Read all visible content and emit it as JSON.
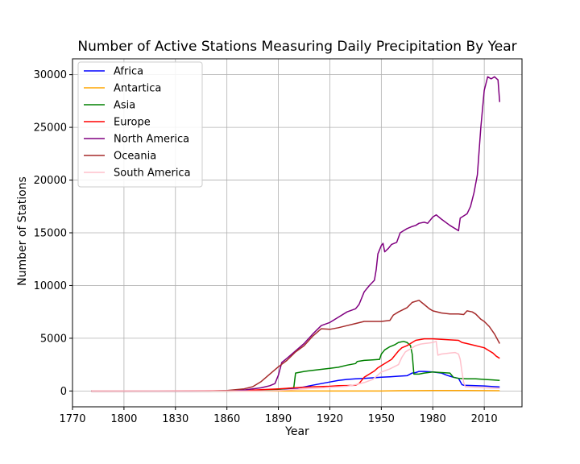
{
  "chart_data": {
    "type": "line",
    "title": "Number of Active Stations Measuring Daily Precipitation By Year",
    "xlabel": "Year",
    "ylabel": "Number of Stations",
    "xlim": [
      1770,
      2032
    ],
    "ylim": [
      -1500,
      31500
    ],
    "xticks": [
      1770,
      1800,
      1830,
      1860,
      1890,
      1920,
      1950,
      1980,
      2010
    ],
    "yticks": [
      0,
      5000,
      10000,
      15000,
      20000,
      25000,
      30000
    ],
    "grid": true,
    "legend_position": "top-left",
    "series": [
      {
        "name": "Africa",
        "color": "#0000ff",
        "points": [
          [
            1781,
            0
          ],
          [
            1850,
            0
          ],
          [
            1870,
            10
          ],
          [
            1880,
            60
          ],
          [
            1890,
            150
          ],
          [
            1900,
            250
          ],
          [
            1905,
            380
          ],
          [
            1910,
            550
          ],
          [
            1915,
            700
          ],
          [
            1920,
            850
          ],
          [
            1925,
            1000
          ],
          [
            1930,
            1100
          ],
          [
            1935,
            1150
          ],
          [
            1940,
            1200
          ],
          [
            1945,
            1250
          ],
          [
            1950,
            1300
          ],
          [
            1955,
            1350
          ],
          [
            1960,
            1400
          ],
          [
            1965,
            1450
          ],
          [
            1968,
            1700
          ],
          [
            1970,
            1750
          ],
          [
            1972,
            1850
          ],
          [
            1975,
            1850
          ],
          [
            1980,
            1800
          ],
          [
            1985,
            1700
          ],
          [
            1988,
            1500
          ],
          [
            1990,
            1400
          ],
          [
            1992,
            1300
          ],
          [
            1995,
            1200
          ],
          [
            1997,
            600
          ],
          [
            1998,
            550
          ],
          [
            2005,
            500
          ],
          [
            2010,
            480
          ],
          [
            2015,
            420
          ],
          [
            2019,
            380
          ]
        ]
      },
      {
        "name": "Antartica",
        "color": "#ffa500",
        "points": [
          [
            1781,
            0
          ],
          [
            1950,
            0
          ],
          [
            1957,
            20
          ],
          [
            1960,
            30
          ],
          [
            1980,
            40
          ],
          [
            2000,
            40
          ],
          [
            2019,
            30
          ]
        ]
      },
      {
        "name": "Asia",
        "color": "#008000",
        "points": [
          [
            1781,
            0
          ],
          [
            1860,
            0
          ],
          [
            1880,
            50
          ],
          [
            1890,
            150
          ],
          [
            1899,
            300
          ],
          [
            1900,
            1700
          ],
          [
            1905,
            1850
          ],
          [
            1910,
            1950
          ],
          [
            1915,
            2050
          ],
          [
            1920,
            2150
          ],
          [
            1925,
            2250
          ],
          [
            1930,
            2450
          ],
          [
            1935,
            2600
          ],
          [
            1936,
            2800
          ],
          [
            1940,
            2900
          ],
          [
            1945,
            2950
          ],
          [
            1949,
            3000
          ],
          [
            1950,
            3500
          ],
          [
            1952,
            3900
          ],
          [
            1955,
            4200
          ],
          [
            1958,
            4400
          ],
          [
            1960,
            4600
          ],
          [
            1963,
            4700
          ],
          [
            1965,
            4600
          ],
          [
            1967,
            4300
          ],
          [
            1968,
            3500
          ],
          [
            1969,
            1600
          ],
          [
            1972,
            1600
          ],
          [
            1975,
            1700
          ],
          [
            1980,
            1800
          ],
          [
            1985,
            1750
          ],
          [
            1990,
            1700
          ],
          [
            1992,
            1300
          ],
          [
            1995,
            1200
          ],
          [
            2000,
            1150
          ],
          [
            2005,
            1150
          ],
          [
            2010,
            1100
          ],
          [
            2015,
            1050
          ],
          [
            2019,
            1000
          ]
        ]
      },
      {
        "name": "Europe",
        "color": "#ff0000",
        "points": [
          [
            1781,
            0
          ],
          [
            1860,
            30
          ],
          [
            1875,
            80
          ],
          [
            1890,
            200
          ],
          [
            1900,
            300
          ],
          [
            1910,
            400
          ],
          [
            1920,
            450
          ],
          [
            1925,
            500
          ],
          [
            1930,
            520
          ],
          [
            1935,
            550
          ],
          [
            1937,
            700
          ],
          [
            1940,
            1300
          ],
          [
            1943,
            1600
          ],
          [
            1946,
            1900
          ],
          [
            1948,
            2200
          ],
          [
            1950,
            2400
          ],
          [
            1953,
            2700
          ],
          [
            1956,
            3000
          ],
          [
            1958,
            3400
          ],
          [
            1960,
            3800
          ],
          [
            1962,
            4100
          ],
          [
            1965,
            4300
          ],
          [
            1968,
            4600
          ],
          [
            1970,
            4800
          ],
          [
            1975,
            4950
          ],
          [
            1980,
            4950
          ],
          [
            1985,
            4900
          ],
          [
            1990,
            4850
          ],
          [
            1995,
            4800
          ],
          [
            1997,
            4600
          ],
          [
            2000,
            4500
          ],
          [
            2005,
            4300
          ],
          [
            2010,
            4100
          ],
          [
            2013,
            3800
          ],
          [
            2015,
            3600
          ],
          [
            2017,
            3300
          ],
          [
            2019,
            3100
          ]
        ]
      },
      {
        "name": "North America",
        "color": "#800080",
        "points": [
          [
            1781,
            0
          ],
          [
            1840,
            0
          ],
          [
            1860,
            20
          ],
          [
            1870,
            100
          ],
          [
            1880,
            300
          ],
          [
            1885,
            500
          ],
          [
            1888,
            700
          ],
          [
            1890,
            1500
          ],
          [
            1892,
            2700
          ],
          [
            1895,
            3100
          ],
          [
            1900,
            3800
          ],
          [
            1905,
            4500
          ],
          [
            1910,
            5400
          ],
          [
            1915,
            6200
          ],
          [
            1920,
            6500
          ],
          [
            1925,
            7000
          ],
          [
            1930,
            7500
          ],
          [
            1935,
            7800
          ],
          [
            1937,
            8200
          ],
          [
            1940,
            9400
          ],
          [
            1943,
            10000
          ],
          [
            1946,
            10500
          ],
          [
            1947,
            11500
          ],
          [
            1948,
            13000
          ],
          [
            1950,
            13800
          ],
          [
            1951,
            14000
          ],
          [
            1952,
            13200
          ],
          [
            1954,
            13500
          ],
          [
            1956,
            13900
          ],
          [
            1959,
            14100
          ],
          [
            1961,
            15000
          ],
          [
            1963,
            15200
          ],
          [
            1965,
            15400
          ],
          [
            1968,
            15600
          ],
          [
            1970,
            15700
          ],
          [
            1972,
            15900
          ],
          [
            1975,
            16000
          ],
          [
            1977,
            15900
          ],
          [
            1980,
            16500
          ],
          [
            1982,
            16700
          ],
          [
            1985,
            16300
          ],
          [
            1990,
            15700
          ],
          [
            1995,
            15200
          ],
          [
            1996,
            16400
          ],
          [
            2000,
            16800
          ],
          [
            2002,
            17500
          ],
          [
            2004,
            18800
          ],
          [
            2006,
            20500
          ],
          [
            2008,
            25000
          ],
          [
            2010,
            28500
          ],
          [
            2012,
            29800
          ],
          [
            2014,
            29600
          ],
          [
            2016,
            29800
          ],
          [
            2018,
            29500
          ],
          [
            2019,
            27400
          ]
        ]
      },
      {
        "name": "Oceania",
        "color": "#a52a2a",
        "points": [
          [
            1781,
            0
          ],
          [
            1850,
            0
          ],
          [
            1860,
            50
          ],
          [
            1870,
            200
          ],
          [
            1875,
            400
          ],
          [
            1880,
            900
          ],
          [
            1885,
            1600
          ],
          [
            1890,
            2300
          ],
          [
            1895,
            2900
          ],
          [
            1900,
            3700
          ],
          [
            1905,
            4300
          ],
          [
            1910,
            5200
          ],
          [
            1915,
            5900
          ],
          [
            1920,
            5850
          ],
          [
            1925,
            6000
          ],
          [
            1930,
            6200
          ],
          [
            1935,
            6400
          ],
          [
            1940,
            6600
          ],
          [
            1945,
            6600
          ],
          [
            1950,
            6600
          ],
          [
            1955,
            6700
          ],
          [
            1957,
            7200
          ],
          [
            1960,
            7500
          ],
          [
            1965,
            7900
          ],
          [
            1968,
            8400
          ],
          [
            1972,
            8600
          ],
          [
            1975,
            8200
          ],
          [
            1978,
            7800
          ],
          [
            1980,
            7600
          ],
          [
            1985,
            7400
          ],
          [
            1990,
            7300
          ],
          [
            1995,
            7300
          ],
          [
            1998,
            7250
          ],
          [
            2000,
            7600
          ],
          [
            2003,
            7500
          ],
          [
            2005,
            7300
          ],
          [
            2008,
            6800
          ],
          [
            2010,
            6600
          ],
          [
            2013,
            6100
          ],
          [
            2016,
            5400
          ],
          [
            2019,
            4500
          ]
        ]
      },
      {
        "name": "South America",
        "color": "#ffc0cb",
        "points": [
          [
            1781,
            0
          ],
          [
            1880,
            0
          ],
          [
            1890,
            50
          ],
          [
            1900,
            150
          ],
          [
            1910,
            250
          ],
          [
            1920,
            350
          ],
          [
            1930,
            450
          ],
          [
            1935,
            600
          ],
          [
            1940,
            800
          ],
          [
            1945,
            1100
          ],
          [
            1950,
            1800
          ],
          [
            1955,
            2100
          ],
          [
            1960,
            2500
          ],
          [
            1962,
            3200
          ],
          [
            1964,
            3700
          ],
          [
            1966,
            3900
          ],
          [
            1968,
            4100
          ],
          [
            1970,
            4300
          ],
          [
            1973,
            4450
          ],
          [
            1975,
            4500
          ],
          [
            1978,
            4550
          ],
          [
            1980,
            4600
          ],
          [
            1982,
            4700
          ],
          [
            1983,
            3400
          ],
          [
            1985,
            3500
          ],
          [
            1990,
            3600
          ],
          [
            1993,
            3650
          ],
          [
            1995,
            3500
          ],
          [
            1996,
            3000
          ],
          [
            1997,
            1800
          ],
          [
            1998,
            800
          ],
          [
            1999,
            400
          ],
          [
            2005,
            350
          ],
          [
            2010,
            300
          ],
          [
            2019,
            250
          ]
        ]
      }
    ]
  }
}
